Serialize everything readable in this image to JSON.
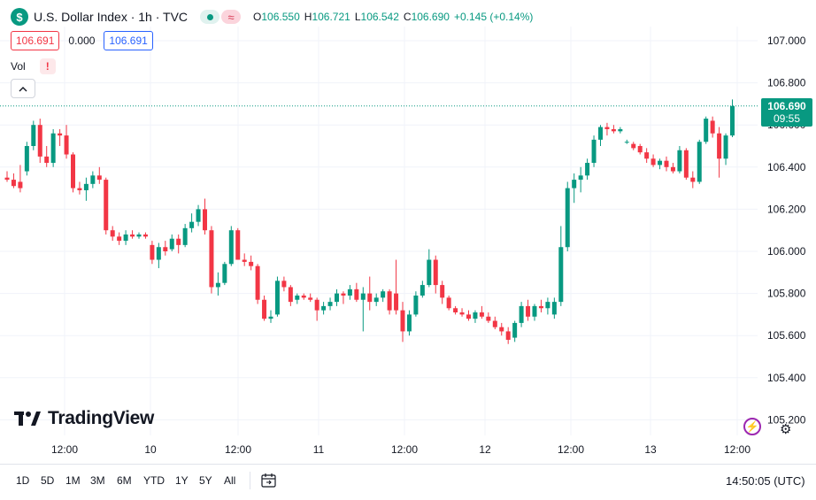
{
  "header": {
    "symbol_icon": "$",
    "title": "U.S. Dollar Index · 1h · TVC",
    "open_label": "O",
    "open": "106.550",
    "high_label": "H",
    "high": "106.721",
    "low_label": "L",
    "low": "106.542",
    "close_label": "C",
    "close": "106.690",
    "change": "+0.145 (+0.14%)"
  },
  "quote": {
    "bid": "106.691",
    "spread": "0.000",
    "ask": "106.691"
  },
  "volume": {
    "label": "Vol",
    "warning": "!"
  },
  "last_price": {
    "value": "106.690",
    "countdown": "09:55"
  },
  "logo_text": "TradingView",
  "timeframes": [
    "1D",
    "5D",
    "1M",
    "3M",
    "6M",
    "YTD",
    "1Y",
    "5Y",
    "All"
  ],
  "clock": "14:50:05 (UTC)",
  "colors": {
    "up": "#089981",
    "down": "#f23645",
    "grid": "#f0f3fa"
  },
  "icons": {
    "symbol": "dollar-icon",
    "market": "market-open-icon",
    "wave": "wave-icon",
    "collapse": "chevron-up-icon",
    "calendar": "calendar-range-icon",
    "settings": "gear-icon",
    "bolt": "lightning-icon"
  },
  "chart_data": {
    "type": "candlestick",
    "title": "U.S. Dollar Index · 1h · TVC",
    "y_ticks": [
      "107.000",
      "106.800",
      "106.600",
      "106.400",
      "106.200",
      "106.000",
      "105.800",
      "105.600",
      "105.400",
      "105.200"
    ],
    "x_ticks": [
      "12:00",
      "10",
      "12:00",
      "11",
      "12:00",
      "12",
      "12:00",
      "13",
      "12:00"
    ],
    "ylim": [
      105.15,
      107.07
    ],
    "last_price": 106.69,
    "grid": true,
    "candles": [
      {
        "o": 106.35,
        "h": 106.38,
        "l": 106.33,
        "c": 106.34
      },
      {
        "o": 106.34,
        "h": 106.37,
        "l": 106.3,
        "c": 106.31
      },
      {
        "o": 106.33,
        "h": 106.41,
        "l": 106.28,
        "c": 106.3
      },
      {
        "o": 106.38,
        "h": 106.52,
        "l": 106.36,
        "c": 106.5
      },
      {
        "o": 106.5,
        "h": 106.62,
        "l": 106.48,
        "c": 106.6
      },
      {
        "o": 106.6,
        "h": 106.63,
        "l": 106.42,
        "c": 106.45
      },
      {
        "o": 106.45,
        "h": 106.5,
        "l": 106.4,
        "c": 106.42
      },
      {
        "o": 106.42,
        "h": 106.58,
        "l": 106.4,
        "c": 106.56
      },
      {
        "o": 106.56,
        "h": 106.58,
        "l": 106.5,
        "c": 106.55
      },
      {
        "o": 106.55,
        "h": 106.6,
        "l": 106.44,
        "c": 106.46
      },
      {
        "o": 106.46,
        "h": 106.47,
        "l": 106.28,
        "c": 106.3
      },
      {
        "o": 106.3,
        "h": 106.33,
        "l": 106.27,
        "c": 106.29
      },
      {
        "o": 106.29,
        "h": 106.35,
        "l": 106.24,
        "c": 106.32
      },
      {
        "o": 106.32,
        "h": 106.38,
        "l": 106.3,
        "c": 106.36
      },
      {
        "o": 106.36,
        "h": 106.4,
        "l": 106.32,
        "c": 106.34
      },
      {
        "o": 106.34,
        "h": 106.35,
        "l": 106.08,
        "c": 106.1
      },
      {
        "o": 106.1,
        "h": 106.12,
        "l": 106.05,
        "c": 106.07
      },
      {
        "o": 106.07,
        "h": 106.09,
        "l": 106.03,
        "c": 106.05
      },
      {
        "o": 106.05,
        "h": 106.1,
        "l": 106.03,
        "c": 106.08
      },
      {
        "o": 106.08,
        "h": 106.1,
        "l": 106.06,
        "c": 106.07
      },
      {
        "o": 106.07,
        "h": 106.09,
        "l": 106.06,
        "c": 106.08
      },
      {
        "o": 106.08,
        "h": 106.09,
        "l": 106.06,
        "c": 106.07
      },
      {
        "o": 106.03,
        "h": 106.05,
        "l": 105.94,
        "c": 105.96
      },
      {
        "o": 105.96,
        "h": 106.04,
        "l": 105.92,
        "c": 106.02
      },
      {
        "o": 106.02,
        "h": 106.05,
        "l": 105.98,
        "c": 106.0
      },
      {
        "o": 106.01,
        "h": 106.08,
        "l": 106.0,
        "c": 106.06
      },
      {
        "o": 106.06,
        "h": 106.08,
        "l": 105.99,
        "c": 106.03
      },
      {
        "o": 106.03,
        "h": 106.13,
        "l": 106.02,
        "c": 106.11
      },
      {
        "o": 106.11,
        "h": 106.18,
        "l": 106.09,
        "c": 106.14
      },
      {
        "o": 106.14,
        "h": 106.22,
        "l": 106.12,
        "c": 106.2
      },
      {
        "o": 106.2,
        "h": 106.25,
        "l": 106.08,
        "c": 106.1
      },
      {
        "o": 106.1,
        "h": 106.12,
        "l": 105.8,
        "c": 105.83
      },
      {
        "o": 105.83,
        "h": 105.9,
        "l": 105.79,
        "c": 105.85
      },
      {
        "o": 105.85,
        "h": 105.95,
        "l": 105.84,
        "c": 105.94
      },
      {
        "o": 105.94,
        "h": 106.12,
        "l": 105.93,
        "c": 106.1
      },
      {
        "o": 106.1,
        "h": 106.11,
        "l": 105.96,
        "c": 105.96
      },
      {
        "o": 105.96,
        "h": 105.99,
        "l": 105.93,
        "c": 105.95
      },
      {
        "o": 105.95,
        "h": 105.98,
        "l": 105.91,
        "c": 105.93
      },
      {
        "o": 105.93,
        "h": 105.94,
        "l": 105.75,
        "c": 105.77
      },
      {
        "o": 105.77,
        "h": 105.79,
        "l": 105.67,
        "c": 105.68
      },
      {
        "o": 105.68,
        "h": 105.72,
        "l": 105.66,
        "c": 105.69
      },
      {
        "o": 105.7,
        "h": 105.88,
        "l": 105.69,
        "c": 105.86
      },
      {
        "o": 105.86,
        "h": 105.88,
        "l": 105.81,
        "c": 105.83
      },
      {
        "o": 105.83,
        "h": 105.84,
        "l": 105.74,
        "c": 105.76
      },
      {
        "o": 105.77,
        "h": 105.8,
        "l": 105.75,
        "c": 105.79
      },
      {
        "o": 105.79,
        "h": 105.8,
        "l": 105.77,
        "c": 105.78
      },
      {
        "o": 105.78,
        "h": 105.8,
        "l": 105.76,
        "c": 105.77
      },
      {
        "o": 105.77,
        "h": 105.78,
        "l": 105.67,
        "c": 105.72
      },
      {
        "o": 105.72,
        "h": 105.76,
        "l": 105.7,
        "c": 105.74
      },
      {
        "o": 105.74,
        "h": 105.78,
        "l": 105.72,
        "c": 105.76
      },
      {
        "o": 105.76,
        "h": 105.82,
        "l": 105.74,
        "c": 105.8
      },
      {
        "o": 105.8,
        "h": 105.81,
        "l": 105.75,
        "c": 105.79
      },
      {
        "o": 105.79,
        "h": 105.84,
        "l": 105.77,
        "c": 105.82
      },
      {
        "o": 105.82,
        "h": 105.85,
        "l": 105.76,
        "c": 105.77
      },
      {
        "o": 105.77,
        "h": 105.83,
        "l": 105.62,
        "c": 105.8
      },
      {
        "o": 105.8,
        "h": 105.88,
        "l": 105.72,
        "c": 105.76
      },
      {
        "o": 105.76,
        "h": 105.8,
        "l": 105.74,
        "c": 105.78
      },
      {
        "o": 105.78,
        "h": 105.82,
        "l": 105.76,
        "c": 105.81
      },
      {
        "o": 105.81,
        "h": 105.82,
        "l": 105.7,
        "c": 105.72
      },
      {
        "o": 105.8,
        "h": 105.96,
        "l": 105.7,
        "c": 105.72
      },
      {
        "o": 105.72,
        "h": 105.76,
        "l": 105.57,
        "c": 105.62
      },
      {
        "o": 105.62,
        "h": 105.72,
        "l": 105.6,
        "c": 105.7
      },
      {
        "o": 105.7,
        "h": 105.81,
        "l": 105.69,
        "c": 105.79
      },
      {
        "o": 105.79,
        "h": 105.86,
        "l": 105.78,
        "c": 105.84
      },
      {
        "o": 105.84,
        "h": 106.01,
        "l": 105.83,
        "c": 105.96
      },
      {
        "o": 105.96,
        "h": 105.98,
        "l": 105.8,
        "c": 105.84
      },
      {
        "o": 105.84,
        "h": 105.86,
        "l": 105.75,
        "c": 105.78
      },
      {
        "o": 105.78,
        "h": 105.79,
        "l": 105.72,
        "c": 105.73
      },
      {
        "o": 105.73,
        "h": 105.74,
        "l": 105.7,
        "c": 105.71
      },
      {
        "o": 105.71,
        "h": 105.73,
        "l": 105.69,
        "c": 105.7
      },
      {
        "o": 105.7,
        "h": 105.72,
        "l": 105.67,
        "c": 105.68
      },
      {
        "o": 105.68,
        "h": 105.72,
        "l": 105.66,
        "c": 105.71
      },
      {
        "o": 105.71,
        "h": 105.74,
        "l": 105.68,
        "c": 105.69
      },
      {
        "o": 105.69,
        "h": 105.71,
        "l": 105.66,
        "c": 105.67
      },
      {
        "o": 105.67,
        "h": 105.69,
        "l": 105.63,
        "c": 105.64
      },
      {
        "o": 105.64,
        "h": 105.66,
        "l": 105.6,
        "c": 105.62
      },
      {
        "o": 105.62,
        "h": 105.64,
        "l": 105.56,
        "c": 105.58
      },
      {
        "o": 105.59,
        "h": 105.67,
        "l": 105.57,
        "c": 105.66
      },
      {
        "o": 105.66,
        "h": 105.76,
        "l": 105.64,
        "c": 105.74
      },
      {
        "o": 105.74,
        "h": 105.77,
        "l": 105.67,
        "c": 105.69
      },
      {
        "o": 105.69,
        "h": 105.75,
        "l": 105.67,
        "c": 105.74
      },
      {
        "o": 105.74,
        "h": 105.77,
        "l": 105.71,
        "c": 105.73
      },
      {
        "o": 105.73,
        "h": 105.78,
        "l": 105.7,
        "c": 105.76
      },
      {
        "o": 105.7,
        "h": 105.78,
        "l": 105.68,
        "c": 105.76
      },
      {
        "o": 105.76,
        "h": 106.12,
        "l": 105.74,
        "c": 106.02
      },
      {
        "o": 106.02,
        "h": 106.33,
        "l": 106.0,
        "c": 106.3
      },
      {
        "o": 106.3,
        "h": 106.37,
        "l": 106.23,
        "c": 106.34
      },
      {
        "o": 106.34,
        "h": 106.4,
        "l": 106.28,
        "c": 106.36
      },
      {
        "o": 106.36,
        "h": 106.44,
        "l": 106.34,
        "c": 106.42
      },
      {
        "o": 106.42,
        "h": 106.55,
        "l": 106.4,
        "c": 106.53
      },
      {
        "o": 106.53,
        "h": 106.6,
        "l": 106.5,
        "c": 106.59
      },
      {
        "o": 106.59,
        "h": 106.61,
        "l": 106.55,
        "c": 106.58
      },
      {
        "o": 106.58,
        "h": 106.6,
        "l": 106.56,
        "c": 106.57
      },
      {
        "o": 106.57,
        "h": 106.59,
        "l": 106.56,
        "c": 106.58
      },
      {
        "o": 106.52,
        "h": 106.53,
        "l": 106.51,
        "c": 106.52
      },
      {
        "o": 106.51,
        "h": 106.52,
        "l": 106.48,
        "c": 106.49
      },
      {
        "o": 106.5,
        "h": 106.51,
        "l": 106.46,
        "c": 106.47
      },
      {
        "o": 106.47,
        "h": 106.49,
        "l": 106.42,
        "c": 106.44
      },
      {
        "o": 106.44,
        "h": 106.46,
        "l": 106.4,
        "c": 106.41
      },
      {
        "o": 106.41,
        "h": 106.44,
        "l": 106.39,
        "c": 106.43
      },
      {
        "o": 106.43,
        "h": 106.45,
        "l": 106.38,
        "c": 106.4
      },
      {
        "o": 106.4,
        "h": 106.42,
        "l": 106.37,
        "c": 106.38
      },
      {
        "o": 106.38,
        "h": 106.5,
        "l": 106.37,
        "c": 106.48
      },
      {
        "o": 106.48,
        "h": 106.49,
        "l": 106.34,
        "c": 106.35
      },
      {
        "o": 106.35,
        "h": 106.38,
        "l": 106.3,
        "c": 106.33
      },
      {
        "o": 106.33,
        "h": 106.53,
        "l": 106.32,
        "c": 106.52
      },
      {
        "o": 106.52,
        "h": 106.64,
        "l": 106.51,
        "c": 106.63
      },
      {
        "o": 106.62,
        "h": 106.64,
        "l": 106.54,
        "c": 106.56
      },
      {
        "o": 106.56,
        "h": 106.59,
        "l": 106.35,
        "c": 106.44
      },
      {
        "o": 106.44,
        "h": 106.56,
        "l": 106.41,
        "c": 106.55
      },
      {
        "o": 106.55,
        "h": 106.721,
        "l": 106.542,
        "c": 106.69
      }
    ]
  }
}
